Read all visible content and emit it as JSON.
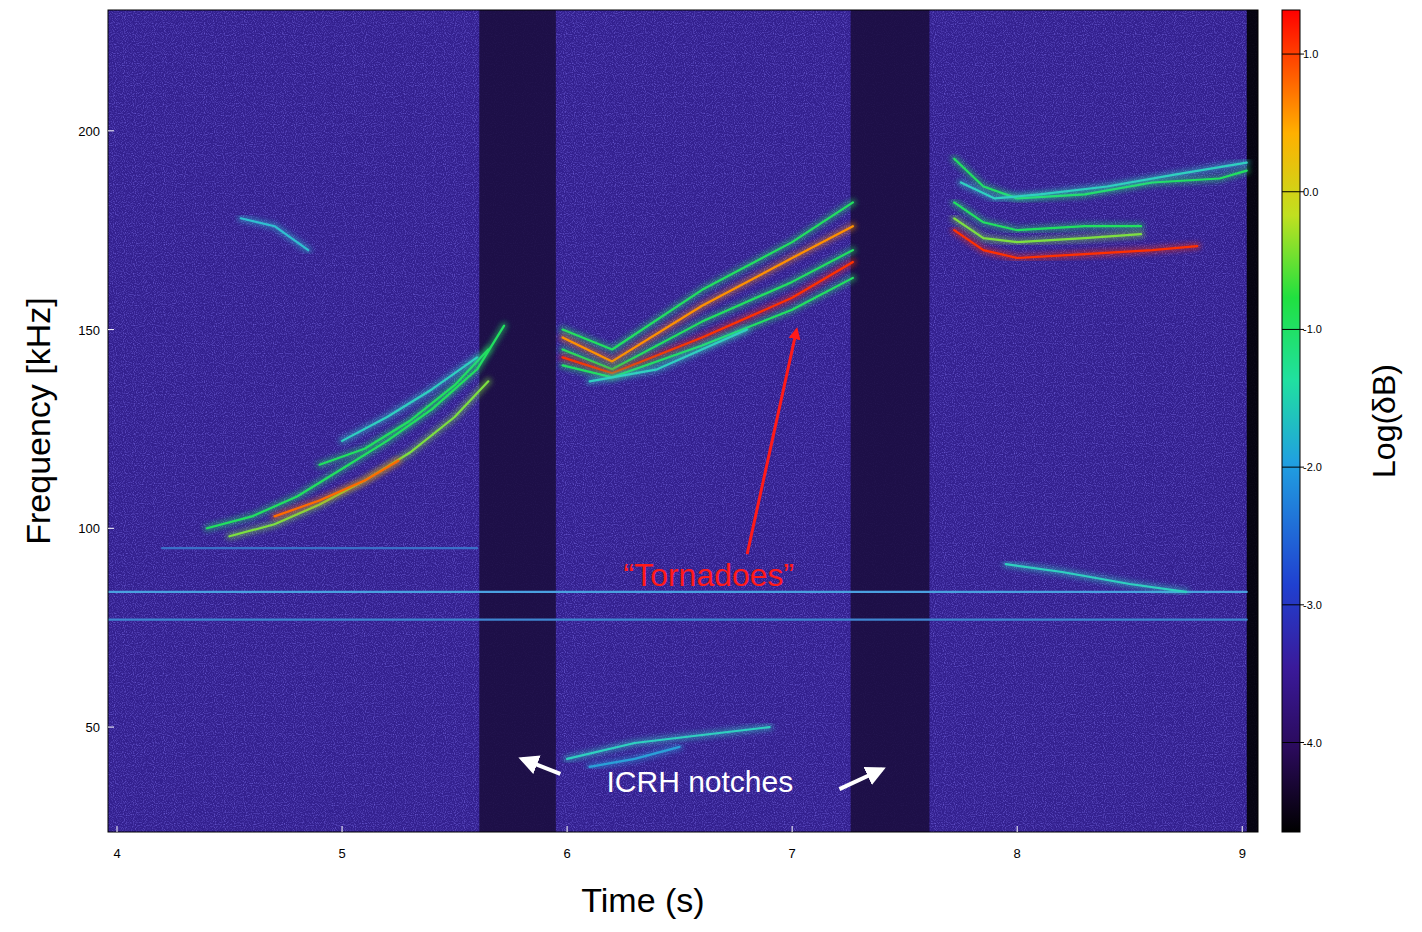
{
  "chart_data": {
    "type": "spectrogram",
    "x_label": "Time (s)",
    "y_label": "Frequency [kHz]",
    "xlim": [
      3.96,
      9.07
    ],
    "ylim": [
      23.6,
      230.4
    ],
    "xticks": [
      4,
      5,
      6,
      7,
      8,
      9
    ],
    "yticks": [
      50,
      100,
      150,
      200
    ],
    "grid": false,
    "background": "#33208f",
    "notches": [
      {
        "start": 5.61,
        "end": 5.95,
        "color": "#1a0d3d"
      },
      {
        "start": 7.26,
        "end": 7.61,
        "color": "#1a0d3d"
      },
      {
        "start": 9.02,
        "end": 9.07,
        "color": "#000000"
      }
    ],
    "series": [
      {
        "color": "#4aa0e0",
        "x": [
          3.96,
          9.02
        ],
        "values": [
          84,
          84
        ]
      },
      {
        "color": "#3f86d0",
        "x": [
          3.96,
          9.02
        ],
        "values": [
          77,
          77
        ]
      },
      {
        "color": "#3a70c8",
        "x": [
          4.2,
          5.6
        ],
        "values": [
          95,
          95
        ]
      },
      {
        "color": "#22e060",
        "x": [
          4.4,
          4.6,
          4.8,
          5.0,
          5.2,
          5.4,
          5.6,
          5.72
        ],
        "values": [
          100,
          103,
          108,
          115,
          122,
          130,
          140,
          151
        ]
      },
      {
        "color": "#7de040",
        "x": [
          4.5,
          4.7,
          4.9,
          5.1,
          5.3,
          5.5,
          5.65
        ],
        "values": [
          98,
          101,
          106,
          112,
          119,
          128,
          137
        ]
      },
      {
        "color": "#22e060",
        "x": [
          4.9,
          5.1,
          5.3,
          5.5,
          5.65
        ],
        "values": [
          116,
          120,
          127,
          136,
          145
        ]
      },
      {
        "color": "#30d0c0",
        "x": [
          5.0,
          5.2,
          5.4,
          5.6
        ],
        "values": [
          122,
          128,
          135,
          143
        ]
      },
      {
        "color": "#ff6a00",
        "x": [
          4.7,
          4.9,
          5.1,
          5.25
        ],
        "values": [
          103,
          107,
          112,
          117
        ]
      },
      {
        "color": "#30c0d0",
        "x": [
          4.55,
          4.7,
          4.85
        ],
        "values": [
          178,
          176,
          170
        ]
      },
      {
        "color": "#22e060",
        "x": [
          5.98,
          6.2,
          6.6,
          7.0,
          7.27
        ],
        "values": [
          150,
          145,
          160,
          172,
          182
        ]
      },
      {
        "color": "#ff9000",
        "x": [
          5.98,
          6.2,
          6.6,
          7.0,
          7.27
        ],
        "values": [
          148,
          142,
          156,
          168,
          176
        ]
      },
      {
        "color": "#22e060",
        "x": [
          5.98,
          6.2,
          6.6,
          7.0,
          7.27
        ],
        "values": [
          145,
          140,
          152,
          162,
          170
        ]
      },
      {
        "color": "#ff3000",
        "x": [
          5.98,
          6.2,
          6.6,
          7.0,
          7.27
        ],
        "values": [
          143,
          139,
          148,
          158,
          167
        ]
      },
      {
        "color": "#22e060",
        "x": [
          5.98,
          6.2,
          6.6,
          7.0,
          7.27
        ],
        "values": [
          141,
          138,
          146,
          155,
          163
        ]
      },
      {
        "color": "#30d0c0",
        "x": [
          6.1,
          6.4,
          6.8
        ],
        "values": [
          137,
          140,
          150
        ]
      },
      {
        "color": "#22e060",
        "x": [
          7.72,
          7.85,
          8.0,
          8.3,
          8.6,
          8.9,
          9.02
        ],
        "values": [
          193,
          186,
          183,
          184,
          187,
          188,
          190
        ]
      },
      {
        "color": "#30d0c0",
        "x": [
          7.75,
          7.9,
          8.1,
          8.4,
          8.7,
          9.02
        ],
        "values": [
          187,
          183,
          184,
          186,
          189,
          192
        ]
      },
      {
        "color": "#22e060",
        "x": [
          7.72,
          7.85,
          8.0,
          8.3,
          8.55
        ],
        "values": [
          182,
          177,
          175,
          176,
          176
        ]
      },
      {
        "color": "#7de040",
        "x": [
          7.72,
          7.85,
          8.0,
          8.3,
          8.55
        ],
        "values": [
          178,
          173,
          172,
          173,
          174
        ]
      },
      {
        "color": "#ff3000",
        "x": [
          7.72,
          7.85,
          8.0,
          8.3,
          8.6,
          8.8
        ],
        "values": [
          175,
          170,
          168,
          169,
          170,
          171
        ]
      },
      {
        "color": "#30d0c0",
        "x": [
          6.0,
          6.3,
          6.6,
          6.9
        ],
        "values": [
          42,
          46,
          48,
          50
        ]
      },
      {
        "color": "#2aa0d8",
        "x": [
          6.1,
          6.3,
          6.5
        ],
        "values": [
          40,
          42,
          45
        ]
      },
      {
        "color": "#30d0c0",
        "x": [
          7.95,
          8.2,
          8.5,
          8.75
        ],
        "values": [
          91,
          89,
          86,
          84
        ]
      }
    ],
    "colorbar": {
      "label": "Log(δB)",
      "range": [
        -4.65,
        1.32
      ],
      "ticks": [
        {
          "value": 1,
          "label": "1.0"
        },
        {
          "value": 0,
          "label": "0.0"
        },
        {
          "value": -1,
          "label": "-1.0"
        },
        {
          "value": -2,
          "label": "-2.0"
        },
        {
          "value": -3,
          "label": "-3.0"
        },
        {
          "value": -4,
          "label": "-4.0"
        }
      ]
    },
    "annotations": [
      {
        "text": "“Tornadoes”",
        "x": 6.63,
        "y": 87.7,
        "color": "#ff1a1a",
        "arrows": [
          {
            "from": [
              6.8,
              93.5
            ],
            "to": [
              7.02,
              150
            ]
          }
        ]
      },
      {
        "text": "ICRH notches",
        "x": 6.59,
        "y": 35.7,
        "color": "#ffffff",
        "arrows": [
          {
            "from": [
              5.97,
              38.2
            ],
            "to": [
              5.8,
              42
            ]
          },
          {
            "from": [
              7.21,
              34.4
            ],
            "to": [
              7.4,
              39.4
            ]
          }
        ]
      }
    ]
  }
}
